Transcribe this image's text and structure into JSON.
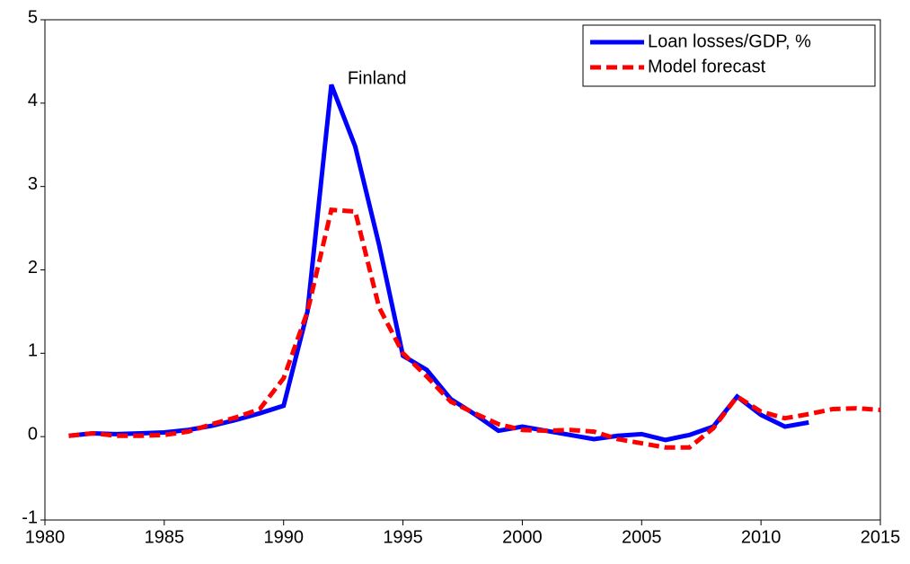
{
  "chart_data": {
    "type": "line",
    "x": [
      1981,
      1982,
      1983,
      1984,
      1985,
      1986,
      1987,
      1988,
      1989,
      1990,
      1991,
      1992,
      1993,
      1994,
      1995,
      1996,
      1997,
      1998,
      1999,
      2000,
      2001,
      2002,
      2003,
      2004,
      2005,
      2006,
      2007,
      2008,
      2009,
      2010,
      2011,
      2012,
      2013,
      2014,
      2015
    ],
    "series": [
      {
        "name": "Loan losses/GDP, %",
        "color": "#0000ff",
        "dash": false,
        "values": [
          0.01,
          0.04,
          0.03,
          0.04,
          0.05,
          0.08,
          0.13,
          0.2,
          0.28,
          0.37,
          1.5,
          4.22,
          3.48,
          2.3,
          0.97,
          0.8,
          0.45,
          0.27,
          0.07,
          0.12,
          0.07,
          0.02,
          -0.03,
          0.01,
          0.03,
          -0.04,
          0.02,
          0.12,
          0.48,
          0.26,
          0.12,
          0.17,
          null,
          null,
          null
        ]
      },
      {
        "name": "Model forecast",
        "color": "#ff0000",
        "dash": true,
        "values": [
          0.01,
          0.04,
          0.01,
          0.01,
          0.02,
          0.06,
          0.15,
          0.23,
          0.33,
          0.7,
          1.5,
          2.72,
          2.7,
          1.55,
          1.0,
          0.72,
          0.42,
          0.28,
          0.15,
          0.08,
          0.07,
          0.08,
          0.06,
          -0.03,
          -0.08,
          -0.13,
          -0.13,
          0.1,
          0.48,
          0.3,
          0.22,
          0.27,
          0.33,
          0.34,
          0.32
        ]
      }
    ],
    "annotation": "Finland",
    "xlim": [
      1980,
      2015
    ],
    "xticks": [
      1980,
      1985,
      1990,
      1995,
      2000,
      2005,
      2010,
      2015
    ],
    "ylim": [
      -1,
      5
    ],
    "yticks": [
      -1,
      0,
      1,
      2,
      3,
      4,
      5
    ],
    "legend": "top-right",
    "grid": false
  }
}
